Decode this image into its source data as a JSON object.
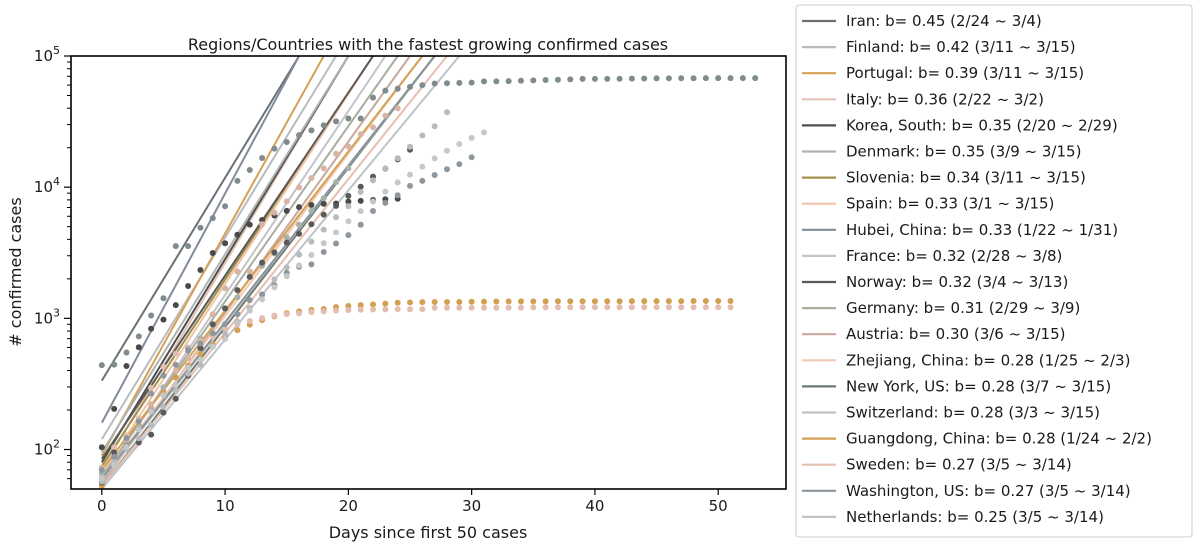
{
  "chart_data": {
    "type": "scatter",
    "title": "Regions/Countries with the fastest growing confirmed cases",
    "xlabel": "Days since first 50 cases",
    "ylabel": "# confirmed cases",
    "xlim": [
      -2.5,
      55.5
    ],
    "ylim": [
      50,
      100000
    ],
    "yscale": "log",
    "x_ticks": [
      0,
      10,
      20,
      30,
      40,
      50
    ],
    "y_ticks": [
      {
        "value": 100,
        "base": "10",
        "exp": "2"
      },
      {
        "value": 1000,
        "base": "10",
        "exp": "3"
      },
      {
        "value": 10000,
        "base": "10",
        "exp": "4"
      },
      {
        "value": 100000,
        "base": "10",
        "exp": "5"
      }
    ],
    "grid": false,
    "legend_position": "outside-right",
    "legend": [
      {
        "label": "Iran: b= 0.45 (2/24 ~ 3/4)",
        "color": "#6b7174"
      },
      {
        "label": "Finland: b= 0.42 (3/11 ~ 3/15)",
        "color": "#b9bcbf"
      },
      {
        "label": "Portugal: b= 0.39 (3/11 ~ 3/15)",
        "color": "#d4a155"
      },
      {
        "label": "Italy: b= 0.36 (2/22 ~ 3/2)",
        "color": "#e3c3b5"
      },
      {
        "label": "Korea, South: b= 0.35 (2/20 ~ 2/29)",
        "color": "#4e4e4e"
      },
      {
        "label": "Denmark: b= 0.35 (3/9 ~ 3/15)",
        "color": "#adb3b1"
      },
      {
        "label": "Slovenia: b= 0.34 (3/11 ~ 3/15)",
        "color": "#a0904a"
      },
      {
        "label": "Spain: b= 0.33 (3/1 ~ 3/15)",
        "color": "#f0c4a6"
      },
      {
        "label": "Hubei, China: b= 0.33 (1/22 ~ 1/31)",
        "color": "#808c99"
      },
      {
        "label": "France: b= 0.32 (2/28 ~ 3/8)",
        "color": "#c2c4c8"
      },
      {
        "label": "Norway: b= 0.32 (3/4 ~ 3/13)",
        "color": "#5b5857"
      },
      {
        "label": "Germany: b= 0.31 (2/29 ~ 3/9)",
        "color": "#a7ad9f"
      },
      {
        "label": "Austria: b= 0.30 (3/6 ~ 3/15)",
        "color": "#c9a99b"
      },
      {
        "label": "Zhejiang, China: b= 0.28 (1/25 ~ 2/3)",
        "color": "#f2c9b3"
      },
      {
        "label": "New York, US: b= 0.28 (3/7 ~ 3/15)",
        "color": "#6e7a74"
      },
      {
        "label": "Switzerland: b= 0.28 (3/3 ~ 3/15)",
        "color": "#c0c3c2"
      },
      {
        "label": "Guangdong, China: b= 0.28 (1/24 ~ 2/2)",
        "color": "#d4a155"
      },
      {
        "label": "Sweden: b= 0.27 (3/5 ~ 3/14)",
        "color": "#e6bfae"
      },
      {
        "label": "Washington, US: b= 0.27 (3/5 ~ 3/14)",
        "color": "#8a949b"
      },
      {
        "label": "Netherlands: b= 0.25 (3/5 ~ 3/14)",
        "color": "#bfc3c7"
      }
    ],
    "fit_lines": [
      {
        "x": [
          0,
          16
        ],
        "y": [
          335,
          100000
        ],
        "color": "#6b7174"
      },
      {
        "x": [
          0,
          19
        ],
        "y": [
          120,
          100000
        ],
        "color": "#b9bcbf"
      },
      {
        "x": [
          0,
          18
        ],
        "y": [
          90,
          100000
        ],
        "color": "#d4a155"
      },
      {
        "x": [
          0,
          20
        ],
        "y": [
          70,
          100000
        ],
        "color": "#e3c3b5"
      },
      {
        "x": [
          0,
          20
        ],
        "y": [
          80,
          100000
        ],
        "color": "#4e4e4e"
      },
      {
        "x": [
          0,
          20
        ],
        "y": [
          95,
          100000
        ],
        "color": "#adb3b1"
      },
      {
        "x": [
          0,
          22
        ],
        "y": [
          75,
          100000
        ],
        "color": "#a0904a"
      },
      {
        "x": [
          0,
          22
        ],
        "y": [
          65,
          100000
        ],
        "color": "#f0c4a6"
      },
      {
        "x": [
          0,
          16
        ],
        "y": [
          160,
          100000
        ],
        "color": "#808c99"
      },
      {
        "x": [
          0,
          23
        ],
        "y": [
          60,
          100000
        ],
        "color": "#c2c4c8"
      },
      {
        "x": [
          0,
          22
        ],
        "y": [
          85,
          100000
        ],
        "color": "#5b5857"
      },
      {
        "x": [
          0,
          24
        ],
        "y": [
          62,
          100000
        ],
        "color": "#a7ad9f"
      },
      {
        "x": [
          0,
          25
        ],
        "y": [
          55,
          100000
        ],
        "color": "#c9a99b"
      },
      {
        "x": [
          0,
          26
        ],
        "y": [
          60,
          100000
        ],
        "color": "#f2c9b3"
      },
      {
        "x": [
          0,
          27
        ],
        "y": [
          52,
          100000
        ],
        "color": "#6e7a74"
      },
      {
        "x": [
          0,
          27
        ],
        "y": [
          58,
          100000
        ],
        "color": "#c0c3c2"
      },
      {
        "x": [
          0,
          26
        ],
        "y": [
          70,
          100000
        ],
        "color": "#d4a155"
      },
      {
        "x": [
          0,
          28
        ],
        "y": [
          52,
          100000
        ],
        "color": "#e6bfae"
      },
      {
        "x": [
          0,
          27
        ],
        "y": [
          60,
          100000
        ],
        "color": "#8a949b"
      },
      {
        "x": [
          0,
          29
        ],
        "y": [
          50,
          100000
        ],
        "color": "#bfc3c7"
      }
    ],
    "scatter_series": [
      {
        "color": "#7f8b8c",
        "x": [
          0,
          1,
          2,
          3,
          4,
          5,
          6,
          7,
          8,
          9,
          10,
          11,
          12,
          13,
          14,
          15,
          16,
          17,
          18,
          19,
          20,
          21,
          22,
          23,
          24,
          25,
          26,
          27,
          28,
          29,
          30,
          31,
          32,
          33,
          34,
          35,
          36,
          37,
          38,
          39,
          40,
          41,
          42,
          43,
          44,
          45,
          46,
          47,
          48,
          49,
          50,
          51,
          52,
          53
        ],
        "y": [
          440,
          444,
          549,
          729,
          1052,
          1423,
          3554,
          3554,
          4903,
          5806,
          7153,
          11177,
          13522,
          16678,
          19665,
          22112,
          24953,
          27100,
          29631,
          31728,
          33366,
          33366,
          48206,
          54406,
          56249,
          58182,
          59989,
          61682,
          62031,
          62442,
          62662,
          64084,
          64084,
          64287,
          64786,
          65187,
          65596,
          65914,
          66337,
          66907,
          66907,
          66907,
          67103,
          67217,
          67332,
          67466,
          67592,
          67666,
          67707,
          67743,
          67760,
          67773,
          67781,
          67786
        ]
      },
      {
        "color": "#4a4a4a",
        "x": [
          0,
          1,
          2,
          3,
          4,
          5,
          6,
          7,
          8,
          9,
          10,
          11,
          12,
          13,
          14,
          15,
          16,
          17,
          18,
          19,
          20,
          21,
          22,
          23,
          24
        ],
        "y": [
          104,
          204,
          433,
          602,
          833,
          977,
          1261,
          1766,
          2337,
          3150,
          3736,
          4335,
          5186,
          5621,
          6088,
          6593,
          7041,
          7314,
          7478,
          7513,
          7755,
          7869,
          7979,
          8086,
          8162
        ]
      },
      {
        "color": "#d2a052",
        "x": [
          0,
          1,
          2,
          3,
          4,
          5,
          6,
          7,
          8,
          9,
          10,
          11,
          12,
          13,
          14,
          15,
          16,
          17,
          18,
          19,
          20,
          21,
          22,
          23,
          24,
          25,
          26,
          27,
          28,
          29,
          30,
          31,
          32,
          33,
          34,
          35,
          36,
          37,
          38,
          39,
          40,
          41,
          42,
          43,
          44,
          45,
          46,
          47,
          48,
          49,
          50,
          51
        ],
        "y": [
          53,
          78,
          111,
          151,
          207,
          277,
          354,
          436,
          535,
          632,
          725,
          813,
          895,
          970,
          1034,
          1095,
          1131,
          1159,
          1177,
          1219,
          1241,
          1261,
          1275,
          1295,
          1316,
          1322,
          1328,
          1331,
          1332,
          1333,
          1339,
          1342,
          1345,
          1347,
          1347,
          1347,
          1348,
          1349,
          1349,
          1350,
          1350,
          1350,
          1351,
          1352,
          1352,
          1352,
          1352,
          1353,
          1356,
          1356,
          1356,
          1356
        ]
      },
      {
        "color": "#e3bdb0",
        "x": [
          0,
          1,
          2,
          3,
          4,
          5,
          6,
          7,
          8,
          9,
          10,
          11,
          12,
          13,
          14,
          15,
          16,
          17,
          18,
          19,
          20,
          21,
          22,
          23,
          24,
          25,
          26,
          27,
          28,
          29,
          30,
          31,
          32,
          33,
          34,
          35,
          36,
          37,
          38,
          39,
          40,
          41,
          42,
          43,
          44,
          45,
          46,
          47,
          48,
          49,
          50,
          51
        ],
        "y": [
          62,
          104,
          128,
          173,
          296,
          428,
          538,
          599,
          661,
          724,
          829,
          895,
          954,
          1006,
          1048,
          1075,
          1092,
          1117,
          1131,
          1145,
          1155,
          1162,
          1167,
          1171,
          1172,
          1174,
          1175,
          1203,
          1205,
          1205,
          1205,
          1205,
          1205,
          1205,
          1206,
          1213,
          1213,
          1215,
          1215,
          1215,
          1215,
          1215,
          1215,
          1215,
          1215,
          1215,
          1215,
          1215,
          1215,
          1215,
          1215,
          1215
        ]
      },
      {
        "color": "#a9b1ab",
        "x": [
          0,
          1,
          2,
          3,
          4,
          5,
          6,
          7,
          8,
          9,
          10,
          11,
          12,
          13,
          14,
          15,
          16,
          17,
          18,
          19,
          20
        ],
        "y": [
          66,
          87,
          115,
          148,
          201,
          298,
          395,
          587,
          704,
          901,
          1195,
          1448,
          2060,
          2512,
          3129,
          4145,
          5170,
          6630,
          8240,
          10930,
          13950
        ]
      },
      {
        "color": "#d9b4a5",
        "x": [
          0,
          1,
          2,
          3,
          4,
          5,
          6,
          7,
          8,
          9,
          10,
          11,
          12,
          13,
          14,
          15,
          16,
          17,
          18,
          19,
          20,
          21,
          22,
          23,
          24
        ],
        "y": [
          73,
          84,
          120,
          165,
          222,
          259,
          400,
          500,
          673,
          1073,
          1695,
          2277,
          2277,
          5232,
          6391,
          7798,
          9942,
          11748,
          13910,
          17963,
          20410,
          25374,
          28603,
          35136,
          39885
        ]
      },
      {
        "color": "#5a5a5a",
        "x": [
          0,
          1,
          2,
          3,
          4,
          5,
          6,
          7,
          8,
          9,
          10,
          11,
          12,
          13,
          14,
          15,
          16,
          17,
          18,
          19,
          20,
          21,
          22,
          23,
          24,
          25
        ],
        "y": [
          56,
          95,
          106,
          113,
          130,
          191,
          244,
          366,
          594,
          900,
          1189,
          1641,
          2069,
          2660,
          3186,
          3776,
          4412,
          5214,
          6173,
          7197,
          8576,
          10082,
          12022,
          13847,
          16301,
          19305
        ]
      },
      {
        "color": "#b7bbbf",
        "x": [
          0,
          1,
          2,
          3,
          4,
          5,
          6,
          7,
          8,
          9,
          10,
          11,
          12,
          13,
          14,
          15,
          16,
          17,
          18,
          19,
          20,
          21,
          22,
          23,
          24,
          25,
          26,
          27,
          28
        ],
        "y": [
          57,
          79,
          101,
          122,
          154,
          212,
          282,
          377,
          442,
          613,
          764,
          944,
          1201,
          1496,
          1981,
          2448,
          3063,
          3848,
          4747,
          5893,
          7153,
          9192,
          11269,
          13910,
          16605,
          20349,
          24773,
          29132,
          37234
        ]
      },
      {
        "color": "#8e979d",
        "x": [
          0,
          1,
          2,
          3,
          4,
          5,
          6,
          7,
          8,
          9,
          10,
          11,
          12,
          13,
          14,
          15,
          16,
          17,
          18,
          19,
          20,
          21,
          22,
          23,
          24,
          25,
          26,
          27,
          28,
          29,
          30
        ],
        "y": [
          70,
          88,
          122,
          164,
          267,
          366,
          442,
          568,
          642,
          769,
          904,
          1076,
          1376,
          1524,
          1793,
          2221,
          2469,
          2580,
          3207,
          3723,
          4310,
          5175,
          6585,
          7591,
          8682,
          10231,
          11178,
          12386,
          13686,
          15001,
          16891
        ]
      },
      {
        "color": "#c5c8c9",
        "x": [
          0,
          1,
          2,
          3,
          4,
          5,
          6,
          7,
          8,
          9,
          10,
          11,
          12,
          13,
          14,
          15,
          16,
          17,
          18,
          19,
          20,
          21,
          22,
          23,
          24,
          25,
          26,
          27,
          28,
          29,
          30,
          31
        ],
        "y": [
          60,
          76,
          105,
          142,
          194,
          259,
          310,
          421,
          485,
          607,
          696,
          923,
          1145,
          1396,
          1726,
          2100,
          2534,
          3039,
          3735,
          4521,
          5490,
          6553,
          7779,
          9253,
          10867,
          12467,
          14352,
          16568,
          18937,
          21353,
          23781,
          26163
        ]
      }
    ]
  }
}
